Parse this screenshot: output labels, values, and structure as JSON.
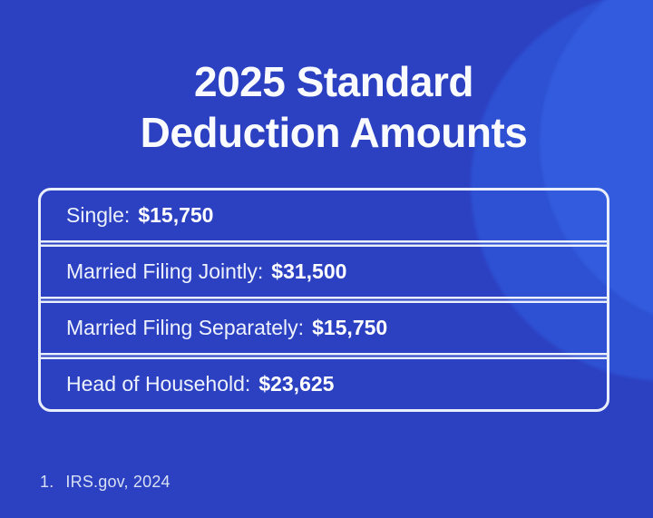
{
  "header": {
    "title_line1": "2025 Standard",
    "title_line2": "Deduction Amounts"
  },
  "table": {
    "rows": [
      {
        "label": "Single:",
        "value": "$15,750"
      },
      {
        "label": "Married Filing Jointly:",
        "value": "$31,500"
      },
      {
        "label": "Married Filing Separately:",
        "value": "$15,750"
      },
      {
        "label": "Head of Household:",
        "value": "$23,625"
      }
    ]
  },
  "footnote": {
    "marker": "1.",
    "text": "IRS.gov, 2024"
  },
  "colors": {
    "background": "#2c41c2",
    "circle_outer": "#2e50d2",
    "circle_inner": "#335bdd",
    "border": "#e8eefb",
    "title_text": "#fafbfe",
    "row_text": "#eef2fc",
    "value_text": "#ffffff",
    "footnote_text": "#d8e0f3"
  },
  "chart_data": {
    "type": "table",
    "title": "2025 Standard Deduction Amounts",
    "categories": [
      "Single",
      "Married Filing Jointly",
      "Married Filing Separately",
      "Head of Household"
    ],
    "values": [
      15750,
      31500,
      15750,
      23625
    ],
    "value_labels": [
      "$15,750",
      "$31,500",
      "$15,750",
      "$23,625"
    ],
    "source_note": "1. IRS.gov, 2024"
  }
}
